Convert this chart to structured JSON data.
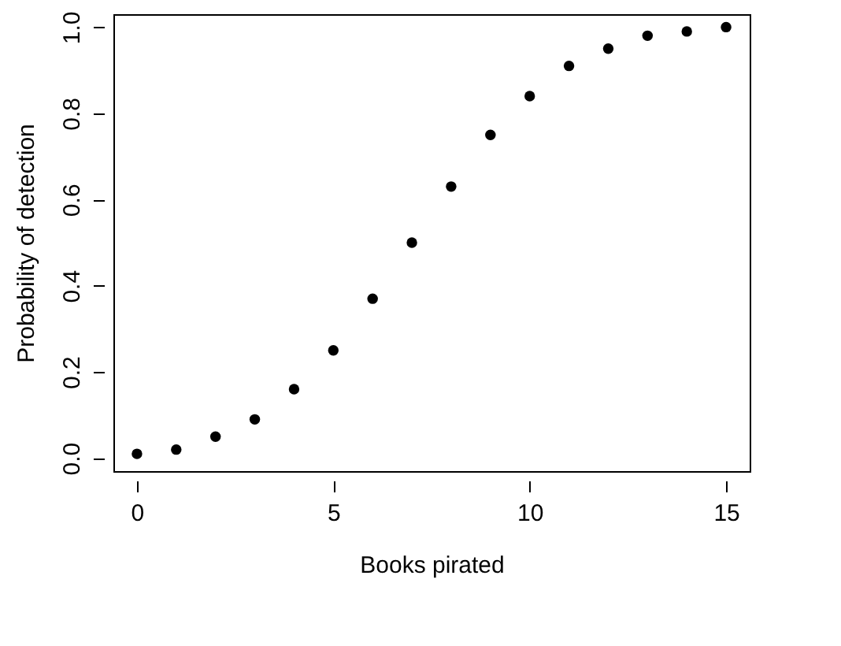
{
  "chart_data": {
    "type": "scatter",
    "xlabel": "Books pirated",
    "ylabel": "Probability of detection",
    "x": [
      0,
      1,
      2,
      3,
      4,
      5,
      6,
      7,
      8,
      9,
      10,
      11,
      12,
      13,
      14,
      15
    ],
    "values": [
      0.01,
      0.02,
      0.05,
      0.09,
      0.16,
      0.25,
      0.37,
      0.5,
      0.63,
      0.75,
      0.84,
      0.91,
      0.95,
      0.98,
      0.99,
      1.0
    ],
    "color": "#000000",
    "marker": "circle",
    "xlim": [
      -0.6,
      15.6
    ],
    "xticks": [
      0,
      5,
      10,
      15
    ],
    "ylim": [
      -0.03,
      1.03
    ],
    "yticks": [
      {
        "value": 0,
        "label": "0.0"
      },
      {
        "value": 0.2,
        "label": "0.2"
      },
      {
        "value": 0.4,
        "label": "0.4"
      },
      {
        "value": 0.6,
        "label": "0.6"
      },
      {
        "value": 0.8,
        "label": "0.8"
      },
      {
        "value": 1,
        "label": "1.0"
      }
    ],
    "grid": false
  }
}
